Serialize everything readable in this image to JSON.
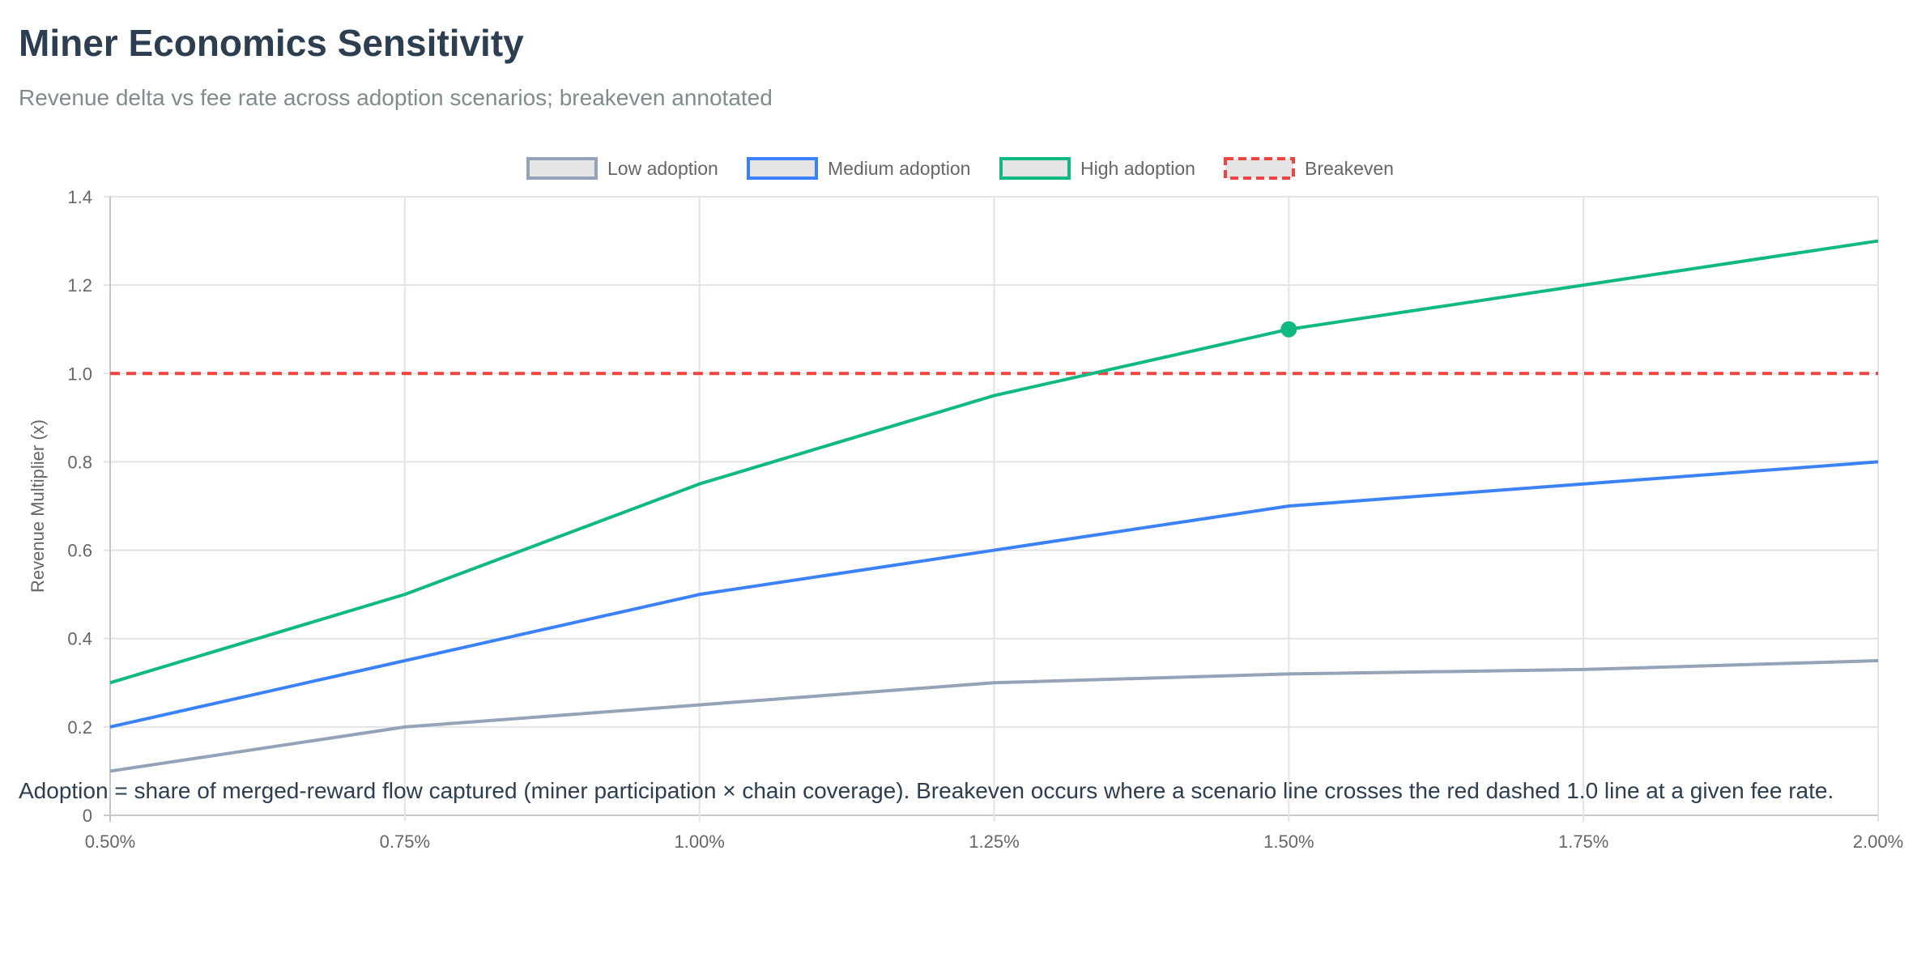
{
  "header": {
    "title": "Miner Economics Sensitivity",
    "subtitle": "Revenue delta vs fee rate across adoption scenarios; breakeven annotated"
  },
  "footnote": "Adoption = share of merged-reward flow captured (miner participation × chain coverage). Breakeven occurs where a scenario line crosses the red dashed 1.0 line at a given fee rate.",
  "chart_data": {
    "type": "line",
    "title": "Miner Economics Sensitivity",
    "subtitle": "Revenue delta vs fee rate across adoption scenarios; breakeven annotated",
    "xlabel": "",
    "ylabel": "Revenue Multiplier (x)",
    "categories": [
      "0.50%",
      "0.75%",
      "1.00%",
      "1.25%",
      "1.50%",
      "1.75%",
      "2.00%"
    ],
    "ylim": [
      0,
      1.4
    ],
    "yticks": [
      "0",
      "0.2",
      "0.4",
      "0.6",
      "0.8",
      "1.0",
      "1.2",
      "1.4"
    ],
    "grid": true,
    "legend_position": "top",
    "series": [
      {
        "name": "Low adoption",
        "color": "#94a3b8",
        "dashed": false,
        "values": [
          0.1,
          0.2,
          0.25,
          0.3,
          0.32,
          0.33,
          0.35
        ]
      },
      {
        "name": "Medium adoption",
        "color": "#3b82f6",
        "dashed": false,
        "values": [
          0.2,
          0.35,
          0.5,
          0.6,
          0.7,
          0.75,
          0.8
        ]
      },
      {
        "name": "High adoption",
        "color": "#10b981",
        "dashed": false,
        "values": [
          0.3,
          0.5,
          0.75,
          0.95,
          1.1,
          1.2,
          1.3
        ]
      },
      {
        "name": "Breakeven",
        "color": "#ef4444",
        "dashed": true,
        "values": [
          1.0,
          1.0,
          1.0,
          1.0,
          1.0,
          1.0,
          1.0
        ]
      }
    ],
    "highlight_point": {
      "series": "High adoption",
      "x": "1.50%",
      "y": 1.1
    }
  }
}
